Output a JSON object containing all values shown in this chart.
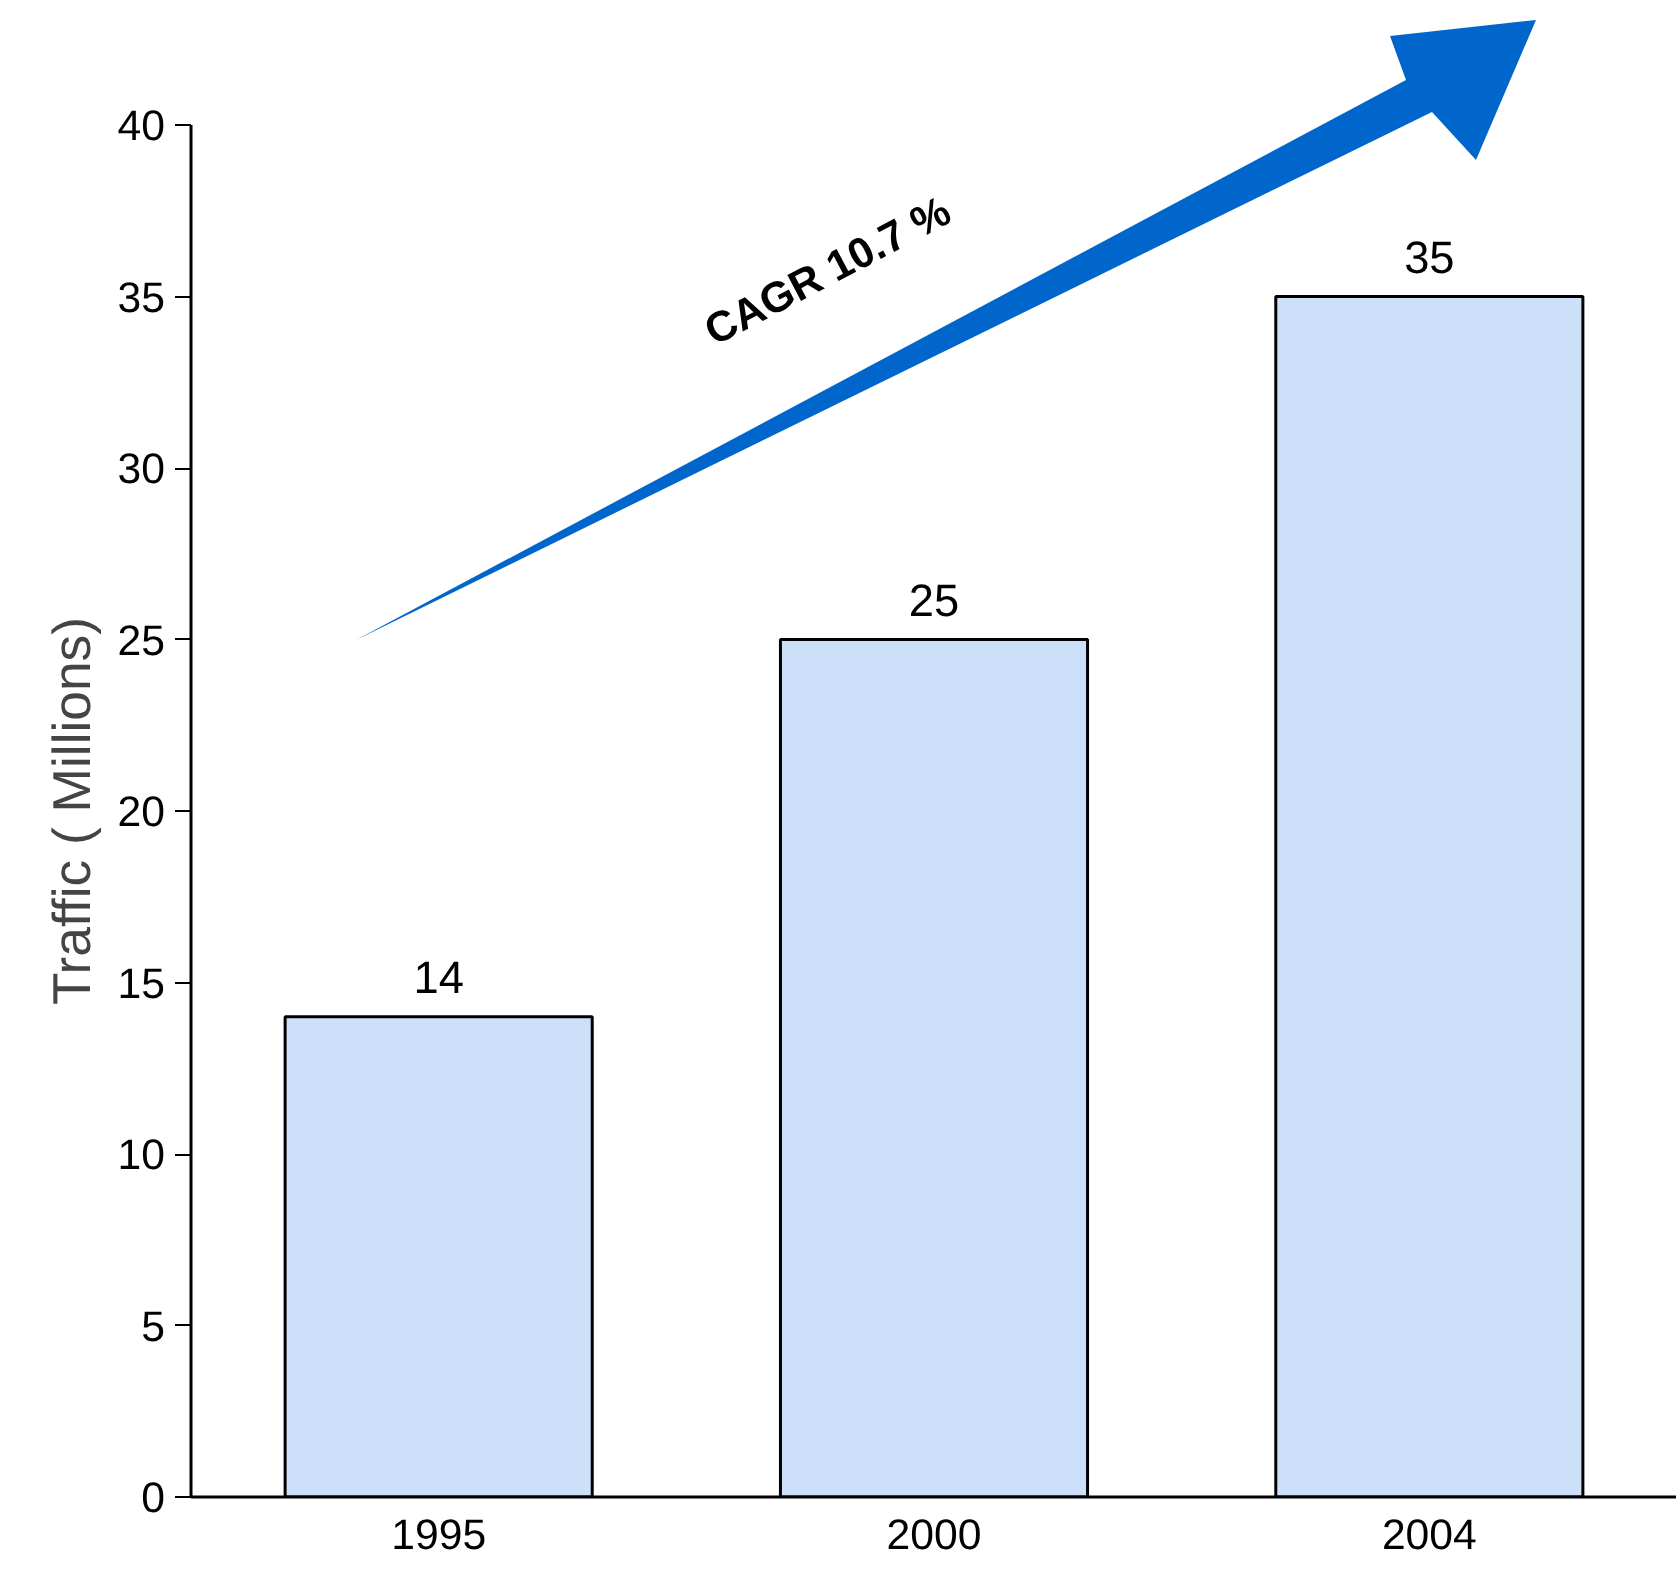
{
  "chart_data": {
    "type": "bar",
    "ylabel": "Traffic ( Millions)",
    "categories": [
      "1995",
      "2000",
      "2004"
    ],
    "values": [
      14,
      25,
      35
    ],
    "color": "#cce1f9",
    "ylim": [
      0,
      40
    ],
    "yticks": [
      0,
      5,
      10,
      15,
      20,
      25,
      30,
      35,
      40
    ],
    "grid": false,
    "data_labels": true,
    "annotations": [
      "CAGR 10.7 %"
    ]
  }
}
